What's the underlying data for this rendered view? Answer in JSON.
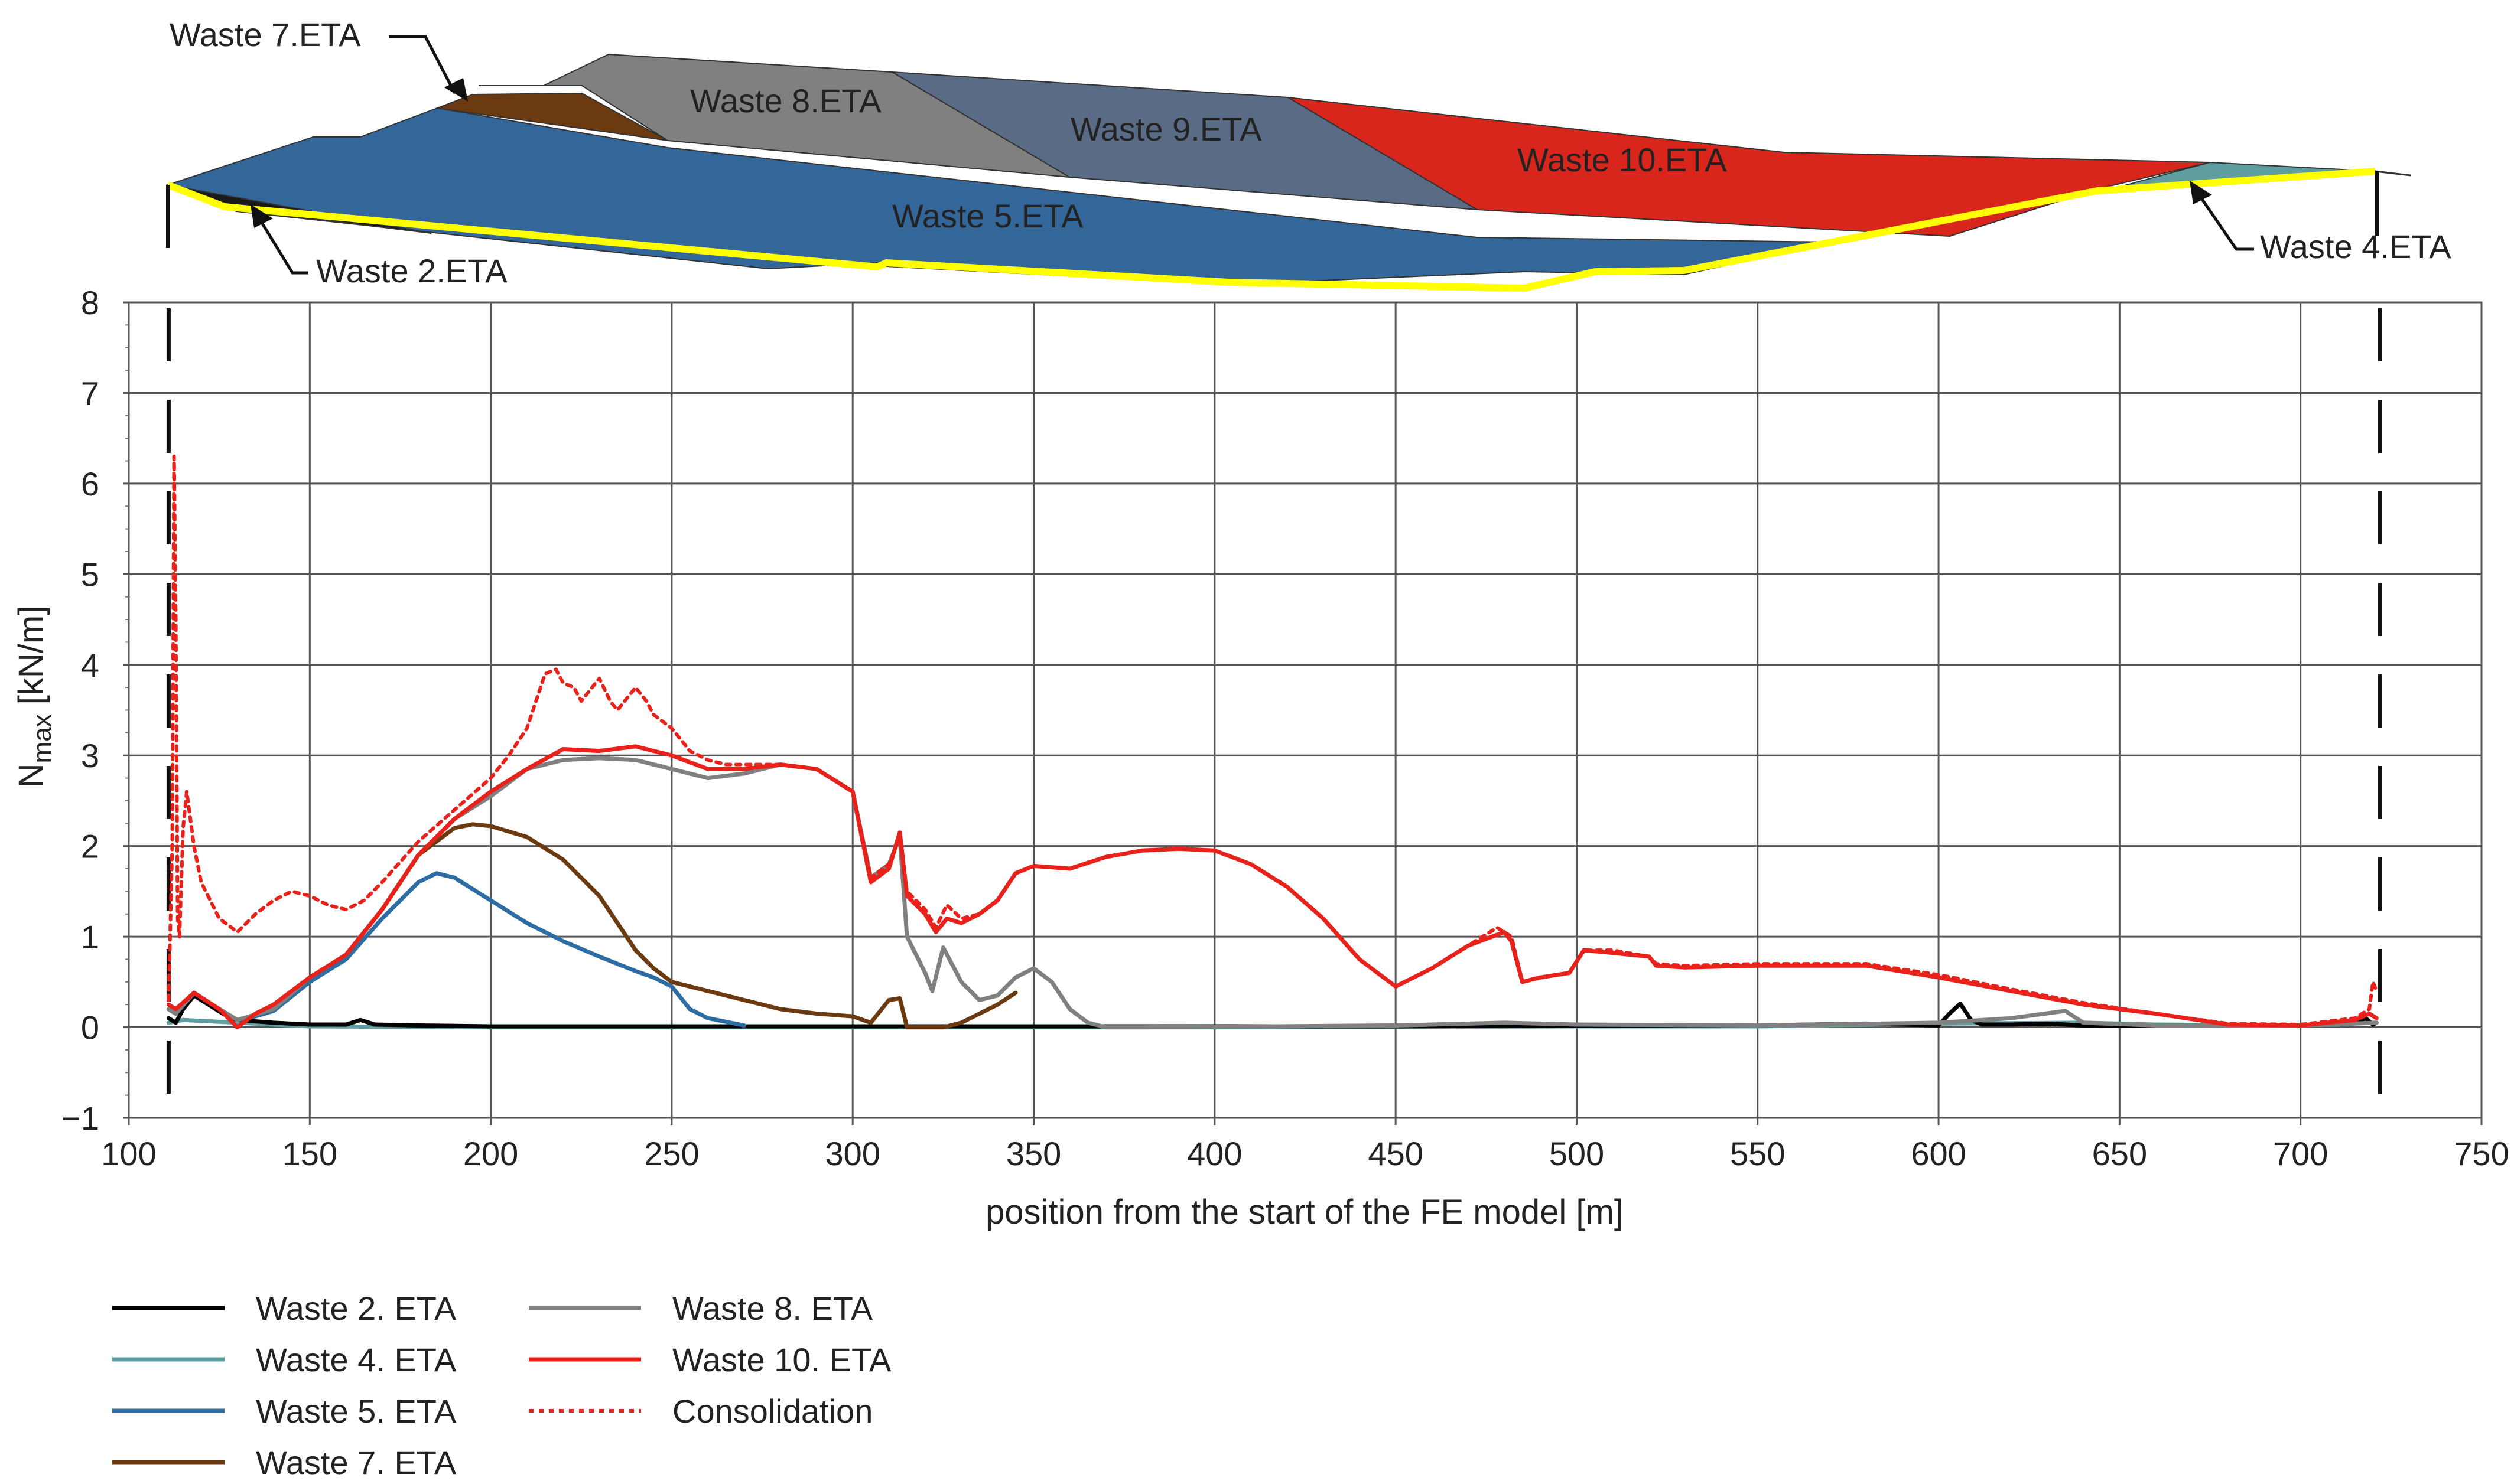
{
  "chart_data": {
    "type": "line",
    "xlabel": "position from the start of the FE model [m]",
    "ylabel_main": "N",
    "ylabel_sub": "max",
    "ylabel_unit": " [kN/m]",
    "xlim": [
      100,
      750
    ],
    "ylim": [
      -1,
      8
    ],
    "xticks": [
      100,
      150,
      200,
      250,
      300,
      350,
      400,
      450,
      500,
      550,
      600,
      650,
      700,
      750
    ],
    "yticks": [
      -1,
      0,
      1,
      2,
      3,
      4,
      5,
      6,
      7,
      8
    ],
    "ytick_labels": [
      "−1",
      "0",
      "1",
      "2",
      "3",
      "4",
      "5",
      "6",
      "7",
      "8"
    ],
    "grid": true,
    "model_bounds_x": [
      111,
      722
    ],
    "cross_section": {
      "labels": [
        {
          "id": "w7",
          "text": "Waste 7.ETA"
        },
        {
          "id": "w8",
          "text": "Waste 8.ETA"
        },
        {
          "id": "w9",
          "text": "Waste 9.ETA"
        },
        {
          "id": "w10",
          "text": "Waste 10.ETA"
        },
        {
          "id": "w5",
          "text": "Waste 5.ETA"
        },
        {
          "id": "w2",
          "text": "Waste 2.ETA"
        },
        {
          "id": "w4",
          "text": "Waste 4.ETA"
        }
      ],
      "colors": {
        "w5": "#336699",
        "w8": "#808080",
        "w9": "#5a6b85",
        "w10": "#d9261c",
        "w7": "#6b3a10",
        "w4": "#5f9ea0",
        "w2": "#1a1a1a",
        "liner": "#ffff00"
      }
    },
    "series": [
      {
        "name": "Waste 2. ETA",
        "color": "#000000",
        "dash": "solid",
        "x": [
          111,
          113,
          115,
          118,
          122,
          126,
          130,
          140,
          150,
          160,
          164,
          168,
          180,
          200,
          250,
          300,
          350,
          400,
          450,
          500,
          550,
          580,
          600,
          603,
          606,
          609,
          612,
          620,
          630,
          640,
          650,
          660,
          690,
          700,
          715,
          718,
          720,
          721
        ],
        "y": [
          0.1,
          0.05,
          0.2,
          0.35,
          0.25,
          0.15,
          0.08,
          0.05,
          0.03,
          0.03,
          0.08,
          0.03,
          0.02,
          0.01,
          0.01,
          0.01,
          0.01,
          0.01,
          0.01,
          0.02,
          0.02,
          0.04,
          0.02,
          0.15,
          0.26,
          0.08,
          0.03,
          0.03,
          0.04,
          0.02,
          0.02,
          0.02,
          0.02,
          0.02,
          0.05,
          0.1,
          0.03,
          0.05
        ]
      },
      {
        "name": "Waste 4. ETA",
        "color": "#5f9ea0",
        "dash": "solid",
        "x": [
          111,
          115,
          130,
          150,
          200,
          300,
          400,
          500,
          550,
          600,
          640,
          660,
          690,
          710,
          718,
          721
        ],
        "y": [
          0.05,
          0.08,
          0.05,
          0.01,
          0.0,
          0.0,
          0.0,
          0.01,
          0.01,
          0.04,
          0.05,
          0.03,
          0.02,
          0.03,
          0.05,
          0.05
        ]
      },
      {
        "name": "Waste 5. ETA",
        "color": "#2e6da4",
        "dash": "solid",
        "x": [
          111,
          113,
          118,
          125,
          130,
          135,
          140,
          150,
          160,
          170,
          180,
          185,
          190,
          200,
          210,
          220,
          230,
          240,
          245,
          250,
          255,
          260,
          270
        ],
        "y": [
          0.2,
          0.15,
          0.38,
          0.2,
          0.08,
          0.12,
          0.18,
          0.5,
          0.75,
          1.2,
          1.6,
          1.7,
          1.65,
          1.4,
          1.15,
          0.95,
          0.78,
          0.62,
          0.55,
          0.45,
          0.2,
          0.1,
          0.02
        ]
      },
      {
        "name": "Waste 7. ETA",
        "color": "#6b3a10",
        "dash": "solid",
        "x": [
          111,
          113,
          118,
          125,
          130,
          140,
          150,
          160,
          170,
          180,
          190,
          195,
          200,
          210,
          220,
          230,
          240,
          245,
          250,
          260,
          270,
          280,
          290,
          300,
          305,
          310,
          313,
          315,
          320,
          325,
          330,
          340,
          345
        ],
        "y": [
          0.2,
          0.15,
          0.38,
          0.2,
          0.08,
          0.2,
          0.55,
          0.8,
          1.3,
          1.9,
          2.2,
          2.24,
          2.22,
          2.1,
          1.85,
          1.45,
          0.85,
          0.65,
          0.5,
          0.4,
          0.3,
          0.2,
          0.15,
          0.12,
          0.05,
          0.3,
          0.32,
          0.0,
          0.0,
          0.0,
          0.05,
          0.25,
          0.38
        ]
      },
      {
        "name": "Waste 8. ETA",
        "color": "#808080",
        "dash": "solid",
        "x": [
          111,
          113,
          118,
          125,
          130,
          140,
          150,
          160,
          170,
          180,
          190,
          200,
          210,
          220,
          230,
          240,
          250,
          260,
          270,
          280,
          290,
          300,
          305,
          310,
          313,
          315,
          320,
          322,
          325,
          330,
          335,
          340,
          345,
          350,
          355,
          360,
          365,
          370,
          380,
          450,
          480,
          500,
          550,
          600,
          620,
          635,
          640,
          660,
          700,
          721
        ],
        "y": [
          0.2,
          0.15,
          0.38,
          0.2,
          0.08,
          0.2,
          0.55,
          0.8,
          1.3,
          1.9,
          2.3,
          2.55,
          2.85,
          2.95,
          2.97,
          2.95,
          2.85,
          2.75,
          2.8,
          2.9,
          2.85,
          2.6,
          1.65,
          1.8,
          2.1,
          1.0,
          0.6,
          0.4,
          0.88,
          0.5,
          0.3,
          0.35,
          0.55,
          0.65,
          0.5,
          0.2,
          0.05,
          0.0,
          0.0,
          0.02,
          0.05,
          0.03,
          0.02,
          0.05,
          0.1,
          0.18,
          0.05,
          0.02,
          0.02,
          0.05
        ]
      },
      {
        "name": "Waste 10. ETA",
        "color": "#e8211b",
        "dash": "solid",
        "x": [
          111,
          113,
          118,
          125,
          130,
          135,
          140,
          150,
          160,
          170,
          180,
          190,
          200,
          210,
          220,
          230,
          240,
          245,
          250,
          260,
          270,
          280,
          290,
          300,
          305,
          310,
          313,
          315,
          320,
          323,
          326,
          330,
          335,
          340,
          345,
          350,
          360,
          370,
          380,
          390,
          400,
          410,
          420,
          430,
          440,
          450,
          460,
          470,
          480,
          482,
          485,
          490,
          498,
          502,
          510,
          520,
          522,
          530,
          550,
          580,
          600,
          620,
          640,
          660,
          680,
          700,
          715,
          719,
          721
        ],
        "y": [
          0.25,
          0.2,
          0.38,
          0.2,
          0.0,
          0.15,
          0.25,
          0.55,
          0.8,
          1.3,
          1.9,
          2.3,
          2.6,
          2.85,
          3.07,
          3.05,
          3.1,
          3.05,
          3.0,
          2.85,
          2.85,
          2.9,
          2.85,
          2.6,
          1.6,
          1.75,
          2.15,
          1.45,
          1.25,
          1.05,
          1.2,
          1.15,
          1.25,
          1.4,
          1.7,
          1.78,
          1.75,
          1.88,
          1.95,
          1.97,
          1.95,
          1.8,
          1.55,
          1.2,
          0.75,
          0.45,
          0.65,
          0.9,
          1.05,
          0.95,
          0.5,
          0.55,
          0.6,
          0.85,
          0.82,
          0.78,
          0.68,
          0.66,
          0.68,
          0.68,
          0.55,
          0.4,
          0.25,
          0.15,
          0.03,
          0.02,
          0.08,
          0.15,
          0.1
        ]
      },
      {
        "name": "Consolidation",
        "color": "#e8211b",
        "dash": "dotted",
        "x": [
          111,
          112,
          112.5,
          113,
          113.5,
          114,
          115,
          116,
          118,
          120,
          125,
          130,
          135,
          140,
          145,
          150,
          155,
          160,
          165,
          170,
          180,
          190,
          200,
          205,
          210,
          215,
          218,
          220,
          223,
          225,
          228,
          230,
          233,
          235,
          238,
          240,
          243,
          245,
          250,
          255,
          260,
          265,
          270,
          280,
          290,
          300,
          305,
          310,
          313,
          315,
          320,
          323,
          326,
          330,
          335,
          340,
          345,
          350,
          360,
          370,
          380,
          390,
          400,
          410,
          420,
          430,
          440,
          450,
          460,
          470,
          478,
          482,
          485,
          490,
          498,
          502,
          510,
          520,
          522,
          530,
          550,
          580,
          600,
          620,
          640,
          660,
          680,
          700,
          715,
          719,
          720,
          721
        ],
        "y": [
          0.3,
          2.0,
          6.3,
          4.5,
          1.2,
          1.0,
          2.2,
          2.6,
          2.0,
          1.6,
          1.2,
          1.05,
          1.25,
          1.4,
          1.5,
          1.45,
          1.35,
          1.3,
          1.4,
          1.6,
          2.05,
          2.4,
          2.75,
          3.0,
          3.3,
          3.9,
          3.95,
          3.8,
          3.75,
          3.6,
          3.75,
          3.85,
          3.6,
          3.5,
          3.65,
          3.75,
          3.6,
          3.45,
          3.3,
          3.05,
          2.95,
          2.9,
          2.9,
          2.9,
          2.85,
          2.6,
          1.65,
          1.8,
          2.1,
          1.5,
          1.3,
          1.1,
          1.35,
          1.2,
          1.25,
          1.4,
          1.7,
          1.78,
          1.75,
          1.88,
          1.95,
          1.97,
          1.95,
          1.8,
          1.55,
          1.2,
          0.75,
          0.45,
          0.65,
          0.9,
          1.1,
          1.0,
          0.5,
          0.55,
          0.6,
          0.85,
          0.85,
          0.78,
          0.7,
          0.68,
          0.7,
          0.7,
          0.58,
          0.42,
          0.27,
          0.15,
          0.04,
          0.03,
          0.1,
          0.2,
          0.5,
          0.4
        ]
      }
    ],
    "legend": {
      "placement": "bottom-left",
      "columns": [
        [
          "Waste 2. ETA",
          "Waste 4. ETA",
          "Waste 5. ETA",
          "Waste 7. ETA"
        ],
        [
          "Waste 8. ETA",
          "Waste 10. ETA",
          "Consolidation"
        ]
      ]
    }
  }
}
